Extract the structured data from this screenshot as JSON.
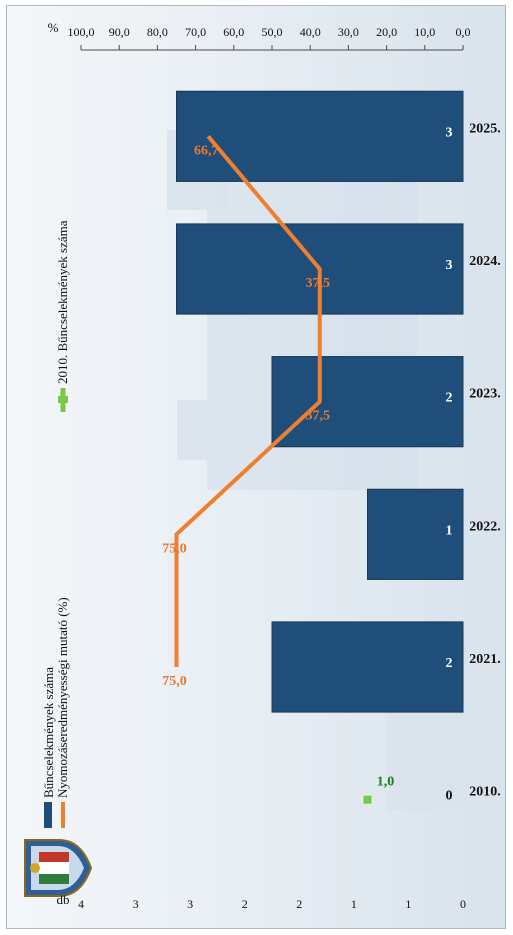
{
  "legend": {
    "bars": "Bűncselekmények száma",
    "line": "Nyomozáseredményességi mutató (%)",
    "baseline": "2010. Bűncselekmények száma"
  },
  "axes": {
    "left_unit": "db",
    "right_unit": "%"
  },
  "colors": {
    "bar": "#1f4e7a",
    "bar_edge": "#16395a",
    "line": "#ef7f2f",
    "line_label": "#e8792c",
    "baseline_marker": "#7ac943",
    "baseline_label": "#1e7a1e"
  },
  "chart_data": {
    "type": "bar",
    "categories": [
      "2010.",
      "2021.",
      "2022.",
      "2023.",
      "2024.",
      "2025."
    ],
    "series": [
      {
        "name": "Bűncselekmények száma",
        "values": [
          0,
          2,
          1,
          2,
          3,
          3
        ]
      },
      {
        "name": "Nyomozáseredményességi mutató (%)",
        "type": "line",
        "values": [
          null,
          75.0,
          75.0,
          37.5,
          37.5,
          66.7
        ]
      },
      {
        "name": "2010. Bűncselekmények száma",
        "type": "marker",
        "values": [
          1.0,
          null,
          null,
          null,
          null,
          null
        ]
      }
    ],
    "bar_labels": [
      "0",
      "2",
      "1",
      "2",
      "3",
      "3"
    ],
    "line_labels": [
      "",
      "75,0",
      "75,0",
      "37,5",
      "37,5",
      "66,7"
    ],
    "marker_labels": [
      "1,0",
      "",
      "",
      "",
      "",
      ""
    ],
    "y_left": {
      "lim": [
        0,
        4
      ],
      "ticks": [
        "0",
        "1",
        "1",
        "2",
        "2",
        "3",
        "3",
        "4"
      ]
    },
    "y_right": {
      "lim": [
        0,
        100
      ],
      "ticks": [
        "0,0",
        "10,0",
        "20,0",
        "30,0",
        "40,0",
        "50,0",
        "60,0",
        "70,0",
        "80,0",
        "90,0",
        "100,0"
      ]
    },
    "legend_position": "top"
  }
}
